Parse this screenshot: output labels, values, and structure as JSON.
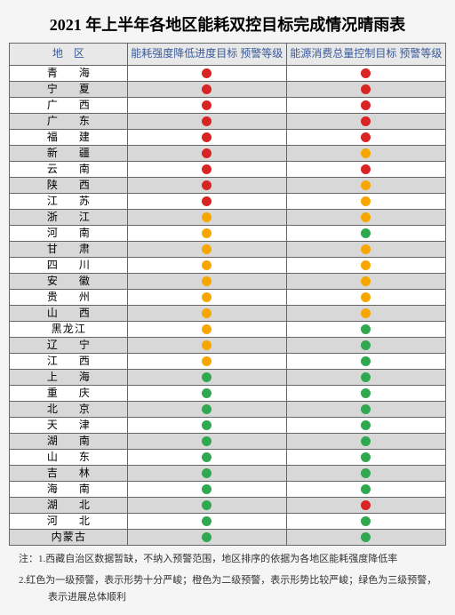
{
  "title": "2021 年上半年各地区能耗双控目标完成情况晴雨表",
  "headers": {
    "region": "地　区",
    "col1": "能耗强度降低进度目标\n预警等级",
    "col2": "能源消费总量控制目标\n预警等级"
  },
  "colors": {
    "red": "#d92424",
    "orange": "#f7a600",
    "green": "#2fa84f"
  },
  "rows": [
    {
      "region": "青　海",
      "c1": "red",
      "c2": "red"
    },
    {
      "region": "宁　夏",
      "c1": "red",
      "c2": "red"
    },
    {
      "region": "广　西",
      "c1": "red",
      "c2": "red"
    },
    {
      "region": "广　东",
      "c1": "red",
      "c2": "red"
    },
    {
      "region": "福　建",
      "c1": "red",
      "c2": "red"
    },
    {
      "region": "新　疆",
      "c1": "red",
      "c2": "orange"
    },
    {
      "region": "云　南",
      "c1": "red",
      "c2": "red"
    },
    {
      "region": "陕　西",
      "c1": "red",
      "c2": "orange"
    },
    {
      "region": "江　苏",
      "c1": "red",
      "c2": "orange"
    },
    {
      "region": "浙　江",
      "c1": "orange",
      "c2": "orange"
    },
    {
      "region": "河　南",
      "c1": "orange",
      "c2": "green"
    },
    {
      "region": "甘　肃",
      "c1": "orange",
      "c2": "orange"
    },
    {
      "region": "四　川",
      "c1": "orange",
      "c2": "orange"
    },
    {
      "region": "安　徽",
      "c1": "orange",
      "c2": "orange"
    },
    {
      "region": "贵　州",
      "c1": "orange",
      "c2": "orange"
    },
    {
      "region": "山　西",
      "c1": "orange",
      "c2": "orange"
    },
    {
      "region": "黑龙江",
      "c1": "orange",
      "c2": "green",
      "tight": true
    },
    {
      "region": "辽　宁",
      "c1": "orange",
      "c2": "green"
    },
    {
      "region": "江　西",
      "c1": "orange",
      "c2": "green"
    },
    {
      "region": "上　海",
      "c1": "green",
      "c2": "green"
    },
    {
      "region": "重　庆",
      "c1": "green",
      "c2": "green"
    },
    {
      "region": "北　京",
      "c1": "green",
      "c2": "green"
    },
    {
      "region": "天　津",
      "c1": "green",
      "c2": "green"
    },
    {
      "region": "湖　南",
      "c1": "green",
      "c2": "green"
    },
    {
      "region": "山　东",
      "c1": "green",
      "c2": "green"
    },
    {
      "region": "吉　林",
      "c1": "green",
      "c2": "green"
    },
    {
      "region": "海　南",
      "c1": "green",
      "c2": "green"
    },
    {
      "region": "湖　北",
      "c1": "green",
      "c2": "red"
    },
    {
      "region": "河　北",
      "c1": "green",
      "c2": "green"
    },
    {
      "region": "内蒙古",
      "c1": "green",
      "c2": "green",
      "tight": true
    }
  ],
  "footnotes": [
    "注：1.西藏自治区数据暂缺，不纳入预警范围，地区排序的依据为各地区能耗强度降低率",
    "2.红色为一级预警，表示形势十分严峻；橙色为二级预警，表示形势比较严峻；绿色为三级预警，表示进展总体顺利"
  ]
}
